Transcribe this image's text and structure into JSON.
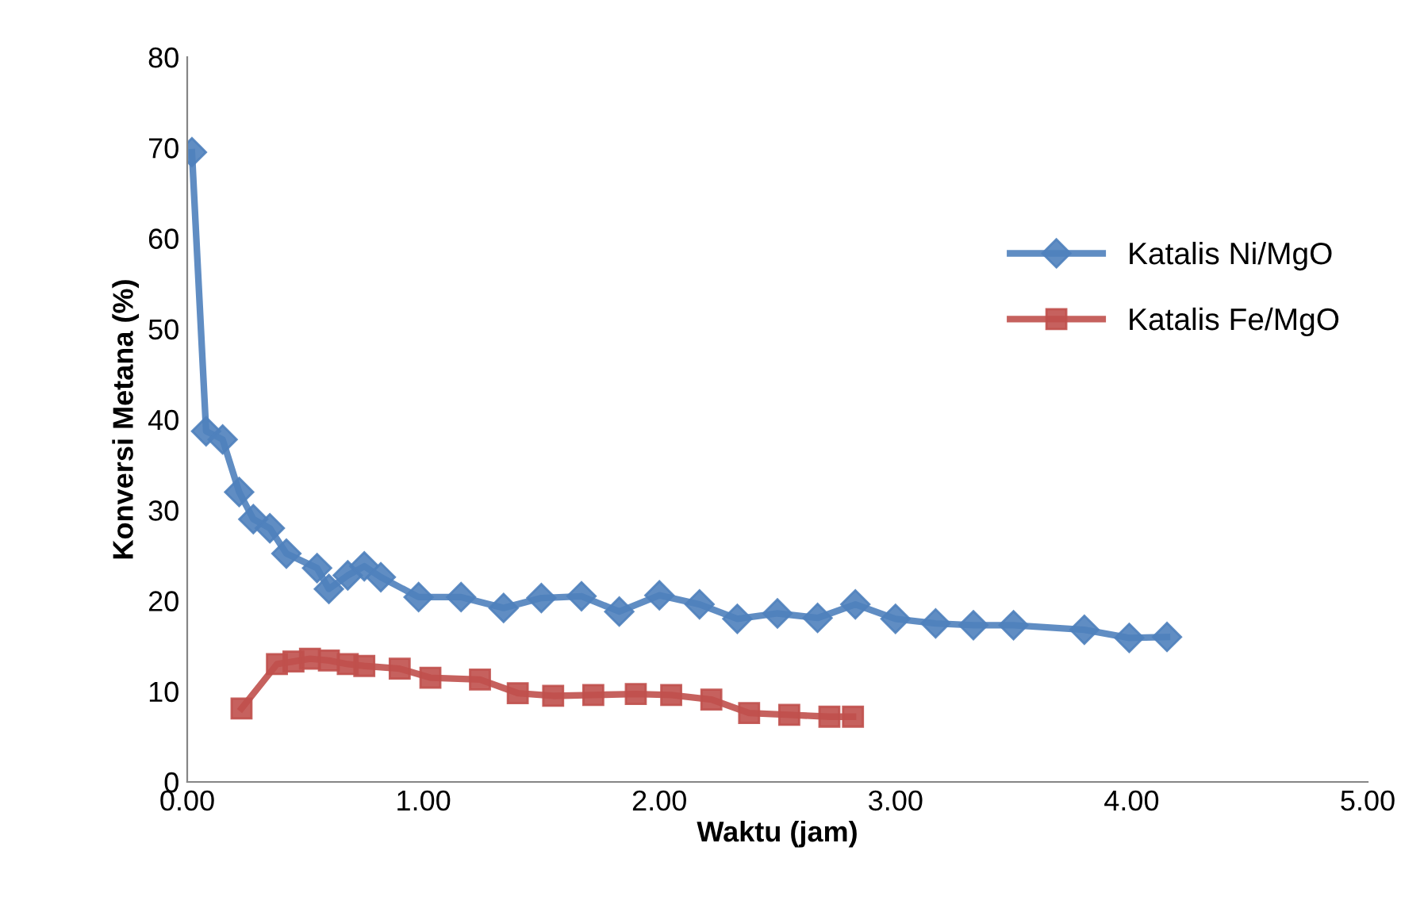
{
  "chart_data": {
    "type": "line",
    "xlabel": "Waktu (jam)",
    "ylabel": "Konversi Metana (%)",
    "xlim": [
      0,
      5
    ],
    "xticks": [
      {
        "value": 0,
        "label": "0.00"
      },
      {
        "value": 1,
        "label": "1.00"
      },
      {
        "value": 2,
        "label": "2.00"
      },
      {
        "value": 3,
        "label": "3.00"
      },
      {
        "value": 4,
        "label": "4.00"
      },
      {
        "value": 5,
        "label": "5.00"
      }
    ],
    "ylim": [
      0,
      80
    ],
    "yticks": [
      0,
      10,
      20,
      30,
      40,
      50,
      60,
      70,
      80
    ],
    "grid": false,
    "legend": "right",
    "series": [
      {
        "name": "Katalis Ni/MgO",
        "color": "#4f81bd",
        "marker": "diamond",
        "x": [
          0.02,
          0.08,
          0.15,
          0.22,
          0.28,
          0.35,
          0.42,
          0.55,
          0.6,
          0.68,
          0.75,
          0.82,
          0.98,
          1.16,
          1.34,
          1.5,
          1.67,
          1.83,
          2.0,
          2.17,
          2.33,
          2.5,
          2.67,
          2.83,
          3.0,
          3.17,
          3.33,
          3.5,
          3.8,
          3.99,
          4.15
        ],
        "values": [
          69.5,
          38.7,
          37.8,
          32,
          29,
          28,
          25.2,
          23.6,
          21.3,
          22.8,
          23.8,
          22.6,
          20.4,
          20.4,
          19.2,
          20.3,
          20.5,
          18.8,
          20.6,
          19.6,
          18.0,
          18.6,
          18.1,
          19.6,
          18.0,
          17.5,
          17.3,
          17.3,
          16.8,
          15.9,
          16.0
        ]
      },
      {
        "name": "Katalis Fe/MgO",
        "color": "#c0504d",
        "marker": "square",
        "x": [
          0.23,
          0.38,
          0.45,
          0.52,
          0.6,
          0.68,
          0.75,
          0.9,
          1.03,
          1.24,
          1.4,
          1.55,
          1.72,
          1.9,
          2.05,
          2.22,
          2.38,
          2.55,
          2.72,
          2.82
        ],
        "values": [
          8.1,
          13.0,
          13.3,
          13.6,
          13.4,
          13.0,
          12.8,
          12.5,
          11.5,
          11.3,
          9.8,
          9.5,
          9.6,
          9.7,
          9.6,
          9.1,
          7.6,
          7.4,
          7.2,
          7.2
        ]
      }
    ]
  }
}
